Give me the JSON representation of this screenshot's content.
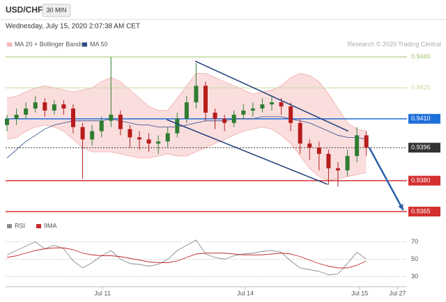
{
  "header": {
    "symbol": "USD/CHF",
    "timeframe": "30 MIN",
    "timestamp": "Wednesday, July 15, 2020 2:07:38 AM CET",
    "credit": "Research © 2020 Trading Central"
  },
  "chart_data": [
    {
      "type": "candlestick",
      "x": [
        0,
        1,
        2,
        3,
        4,
        5,
        6,
        7,
        8,
        9,
        10,
        11,
        12,
        13,
        14,
        15,
        16,
        17,
        18,
        19,
        20,
        21,
        22,
        23,
        24,
        25,
        26,
        27,
        28,
        29,
        30,
        31,
        32,
        33,
        34,
        35,
        36,
        37,
        38
      ],
      "open": [
        0.9407,
        0.941,
        0.9412,
        0.9415,
        0.9418,
        0.9414,
        0.9417,
        0.9415,
        0.9406,
        0.94,
        0.9404,
        0.9409,
        0.9412,
        0.9405,
        0.9401,
        0.94,
        0.9398,
        0.9399,
        0.9403,
        0.941,
        0.9418,
        0.9426,
        0.9413,
        0.941,
        0.9408,
        0.9412,
        0.9414,
        0.9415,
        0.9417,
        0.9418,
        0.9416,
        0.9408,
        0.9398,
        0.9396,
        0.9393,
        0.9386,
        0.9385,
        0.9392,
        0.9402
      ],
      "high": [
        0.9412,
        0.9415,
        0.9418,
        0.9421,
        0.942,
        0.9419,
        0.9419,
        0.9417,
        0.9408,
        0.9407,
        0.9411,
        0.944,
        0.9414,
        0.9407,
        0.9404,
        0.9403,
        0.9402,
        0.9406,
        0.9413,
        0.9421,
        0.9437,
        0.9428,
        0.9415,
        0.9412,
        0.9414,
        0.9417,
        0.9418,
        0.942,
        0.9421,
        0.942,
        0.9418,
        0.941,
        0.94,
        0.9399,
        0.9395,
        0.9389,
        0.9395,
        0.9406,
        0.9404
      ],
      "low": [
        0.9404,
        0.9407,
        0.941,
        0.9413,
        0.9411,
        0.9412,
        0.9412,
        0.9403,
        0.9381,
        0.9397,
        0.9401,
        0.9406,
        0.9402,
        0.9396,
        0.9395,
        0.9394,
        0.9393,
        0.9396,
        0.9401,
        0.9408,
        0.9415,
        0.9409,
        0.9405,
        0.9404,
        0.9406,
        0.941,
        0.9411,
        0.9413,
        0.9414,
        0.9412,
        0.9404,
        0.9393,
        0.939,
        0.9385,
        0.9378,
        0.9377,
        0.9382,
        0.9389,
        0.9392
      ],
      "close": [
        0.941,
        0.9412,
        0.9415,
        0.9418,
        0.9414,
        0.9417,
        0.9415,
        0.9406,
        0.94,
        0.9404,
        0.9409,
        0.9412,
        0.9405,
        0.9401,
        0.94,
        0.9398,
        0.9399,
        0.9403,
        0.941,
        0.9418,
        0.9426,
        0.9413,
        0.941,
        0.9408,
        0.9412,
        0.9414,
        0.9415,
        0.9417,
        0.9418,
        0.9416,
        0.9408,
        0.9398,
        0.9396,
        0.9393,
        0.9386,
        0.9385,
        0.9392,
        0.9402,
        0.9396
      ],
      "up_color": "#2e7d32",
      "down_color": "#b71c1c",
      "series": [
        {
          "name": "MA 20 + Bollinger Bands",
          "color": "#f4b6b6",
          "upper": [
            0.942,
            0.9421,
            0.9423,
            0.9425,
            0.9426,
            0.9425,
            0.9424,
            0.9423,
            0.9424,
            0.9425,
            0.9428,
            0.943,
            0.9428,
            0.9424,
            0.942,
            0.9416,
            0.9414,
            0.9414,
            0.942,
            0.9426,
            0.9432,
            0.9432,
            0.943,
            0.9428,
            0.9426,
            0.9424,
            0.9422,
            0.9423,
            0.9424,
            0.9426,
            0.943,
            0.9432,
            0.9431,
            0.9428,
            0.9422,
            0.9415,
            0.9408,
            0.9405,
            0.9404
          ],
          "lower": [
            0.94,
            0.9401,
            0.9404,
            0.9406,
            0.9407,
            0.9406,
            0.9404,
            0.94,
            0.9396,
            0.9394,
            0.9394,
            0.9394,
            0.9393,
            0.9392,
            0.9391,
            0.9391,
            0.9392,
            0.9393,
            0.9392,
            0.9392,
            0.9394,
            0.9396,
            0.9398,
            0.94,
            0.9402,
            0.9404,
            0.9405,
            0.9406,
            0.9405,
            0.9402,
            0.9398,
            0.9392,
            0.9386,
            0.9382,
            0.938,
            0.9381,
            0.9382,
            0.9383,
            0.9384
          ]
        },
        {
          "name": "MA 50",
          "color": "#2c4a86",
          "values": [
            0.9391,
            0.9395,
            0.9399,
            0.9402,
            0.9405,
            0.9407,
            0.9408,
            0.9409,
            0.9409,
            0.9409,
            0.9409,
            0.941,
            0.9409,
            0.9408,
            0.9407,
            0.9407,
            0.9406,
            0.9406,
            0.9406,
            0.9407,
            0.9408,
            0.9409,
            0.9409,
            0.9409,
            0.941,
            0.941,
            0.941,
            0.9411,
            0.9411,
            0.9411,
            0.941,
            0.9409,
            0.9408,
            0.9406,
            0.9404,
            0.9402,
            0.9401,
            0.9401,
            0.94
          ]
        }
      ],
      "levels": [
        {
          "value": 0.944,
          "label": "0.9440",
          "color": "#9fc36a",
          "label_style": "text"
        },
        {
          "value": 0.9425,
          "label": "0.9425",
          "color": "#c5dca0",
          "label_style": "text"
        },
        {
          "value": 0.941,
          "label": "0.9410",
          "color": "#1e6fd9",
          "label_style": "box"
        },
        {
          "value": 0.9396,
          "label": "0.9396",
          "color": "#333333",
          "label_style": "box",
          "dashed": true
        },
        {
          "value": 0.938,
          "label": "0.9380",
          "color": "#d32f2f",
          "label_style": "box"
        },
        {
          "value": 0.9365,
          "label": "0.9365",
          "color": "#d32f2f",
          "label_style": "box"
        }
      ],
      "trendlines": [
        {
          "x": [
            19.9,
            36.1
          ],
          "y": [
            0.9438,
            0.9404
          ],
          "color": "#1f3d7a"
        },
        {
          "x": [
            16.9,
            33.9
          ],
          "y": [
            0.94096,
            0.93782
          ],
          "color": "#1f3d7a"
        }
      ],
      "arrow": {
        "x": [
          38.3,
          41.9
        ],
        "y": [
          0.93961,
          0.93657
        ],
        "color": "#2a5fa8"
      },
      "xlim": [
        0,
        42
      ],
      "ylim": [
        0.9363,
        0.9444
      ]
    },
    {
      "type": "line",
      "x": [
        0,
        1,
        2,
        3,
        4,
        5,
        6,
        7,
        8,
        9,
        10,
        11,
        12,
        13,
        14,
        15,
        16,
        17,
        18,
        19,
        20,
        21,
        22,
        23,
        24,
        25,
        26,
        27,
        28,
        29,
        30,
        31,
        32,
        33,
        34,
        35,
        36,
        37,
        38
      ],
      "series": [
        {
          "name": "RSI",
          "color": "#8a8a8a",
          "values": [
            55,
            60,
            65,
            70,
            62,
            66,
            62,
            48,
            40,
            46,
            54,
            60,
            50,
            45,
            44,
            42,
            44,
            50,
            60,
            66,
            72,
            56,
            52,
            50,
            54,
            56,
            57,
            59,
            60,
            58,
            48,
            40,
            38,
            36,
            32,
            33,
            45,
            58,
            50
          ]
        },
        {
          "name": "9MA",
          "color": "#c62828",
          "values": [
            52,
            54,
            57,
            60,
            62,
            63,
            63,
            61,
            57,
            55,
            54,
            54,
            53,
            51,
            49,
            47,
            46,
            46,
            48,
            52,
            56,
            57,
            57,
            57,
            56,
            55,
            55,
            55,
            56,
            57,
            56,
            53,
            49,
            45,
            42,
            40,
            40,
            43,
            48
          ]
        }
      ],
      "xlim": [
        0,
        42
      ],
      "ylim": [
        20,
        84
      ],
      "yticks": [
        30,
        50,
        70
      ],
      "xticks": [
        {
          "value": 10.1,
          "label": "Jul 11"
        },
        {
          "value": 25.2,
          "label": "Jul 14"
        },
        {
          "value": 37.3,
          "label": "Jul 15"
        },
        {
          "value": 41.3,
          "label": "Jul 27"
        }
      ]
    }
  ]
}
